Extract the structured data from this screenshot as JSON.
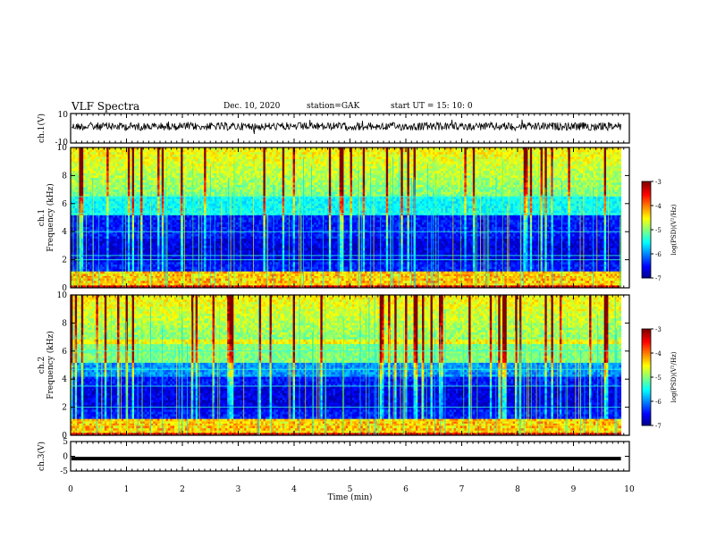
{
  "header": {
    "title": "VLF Spectra",
    "date": "Dec. 10, 2020",
    "station": "station=GAK",
    "start": "start  UT =   15: 10: 0"
  },
  "chart_data": [
    {
      "type": "line",
      "panel": "ch1-waveform",
      "ylabel": "ch.1(V)",
      "ylim": [
        -10,
        10
      ],
      "yticks": [
        "10",
        "-10"
      ],
      "xlim": [
        0,
        10
      ],
      "series": [
        {
          "values_note": "",
          "level": 0,
          "noise_amplitude": 1.5
        }
      ],
      "color": "#000000"
    },
    {
      "type": "heatmap",
      "panel": "ch1-spectrogram",
      "ylabel": "ch.1\nFrequency (kHz)",
      "ylabel_lines": [
        "ch.1",
        "Frequency (kHz)"
      ],
      "ylim": [
        0,
        10
      ],
      "yticks": [
        "0",
        "2",
        "4",
        "6",
        "8",
        "10"
      ],
      "xlim": [
        0,
        10
      ],
      "colorbar": {
        "label": "log(PSD)(V²/Hz)",
        "range": [
          -7,
          -3
        ],
        "ticks": [
          "-3",
          "-4",
          "-5",
          "-6",
          "-7"
        ]
      },
      "bands_khz": [
        0.3,
        0.7,
        1.0,
        2.0,
        2.3,
        4.0,
        5.3,
        6.5
      ],
      "data_end_min": 9.85
    },
    {
      "type": "heatmap",
      "panel": "ch2-spectrogram",
      "ylabel_lines": [
        "ch.2",
        "Frequency (kHz)"
      ],
      "ylim": [
        0,
        10
      ],
      "yticks": [
        "0",
        "2",
        "4",
        "6",
        "8",
        "10"
      ],
      "xlim": [
        0,
        10
      ],
      "colorbar": {
        "label": "log(PSD)(V²/Hz)",
        "range": [
          -7,
          -3
        ],
        "ticks": [
          "-3",
          "-4",
          "-5",
          "-6",
          "-7"
        ]
      },
      "bands_khz": [
        0.3,
        0.7,
        1.0,
        2.0,
        3.5,
        4.7,
        6.0
      ],
      "data_end_min": 9.85
    },
    {
      "type": "line",
      "panel": "ch3-waveform",
      "ylabel": "ch.3(V)",
      "ylim": [
        -5,
        5
      ],
      "yticks": [
        "5",
        "0",
        "-5"
      ],
      "xlim": [
        0,
        10
      ],
      "series": [
        {
          "level": -0.8
        }
      ],
      "xlabel": "Time (min)",
      "xticks": [
        "0",
        "1",
        "2",
        "3",
        "4",
        "5",
        "6",
        "7",
        "8",
        "9",
        "10"
      ]
    }
  ]
}
